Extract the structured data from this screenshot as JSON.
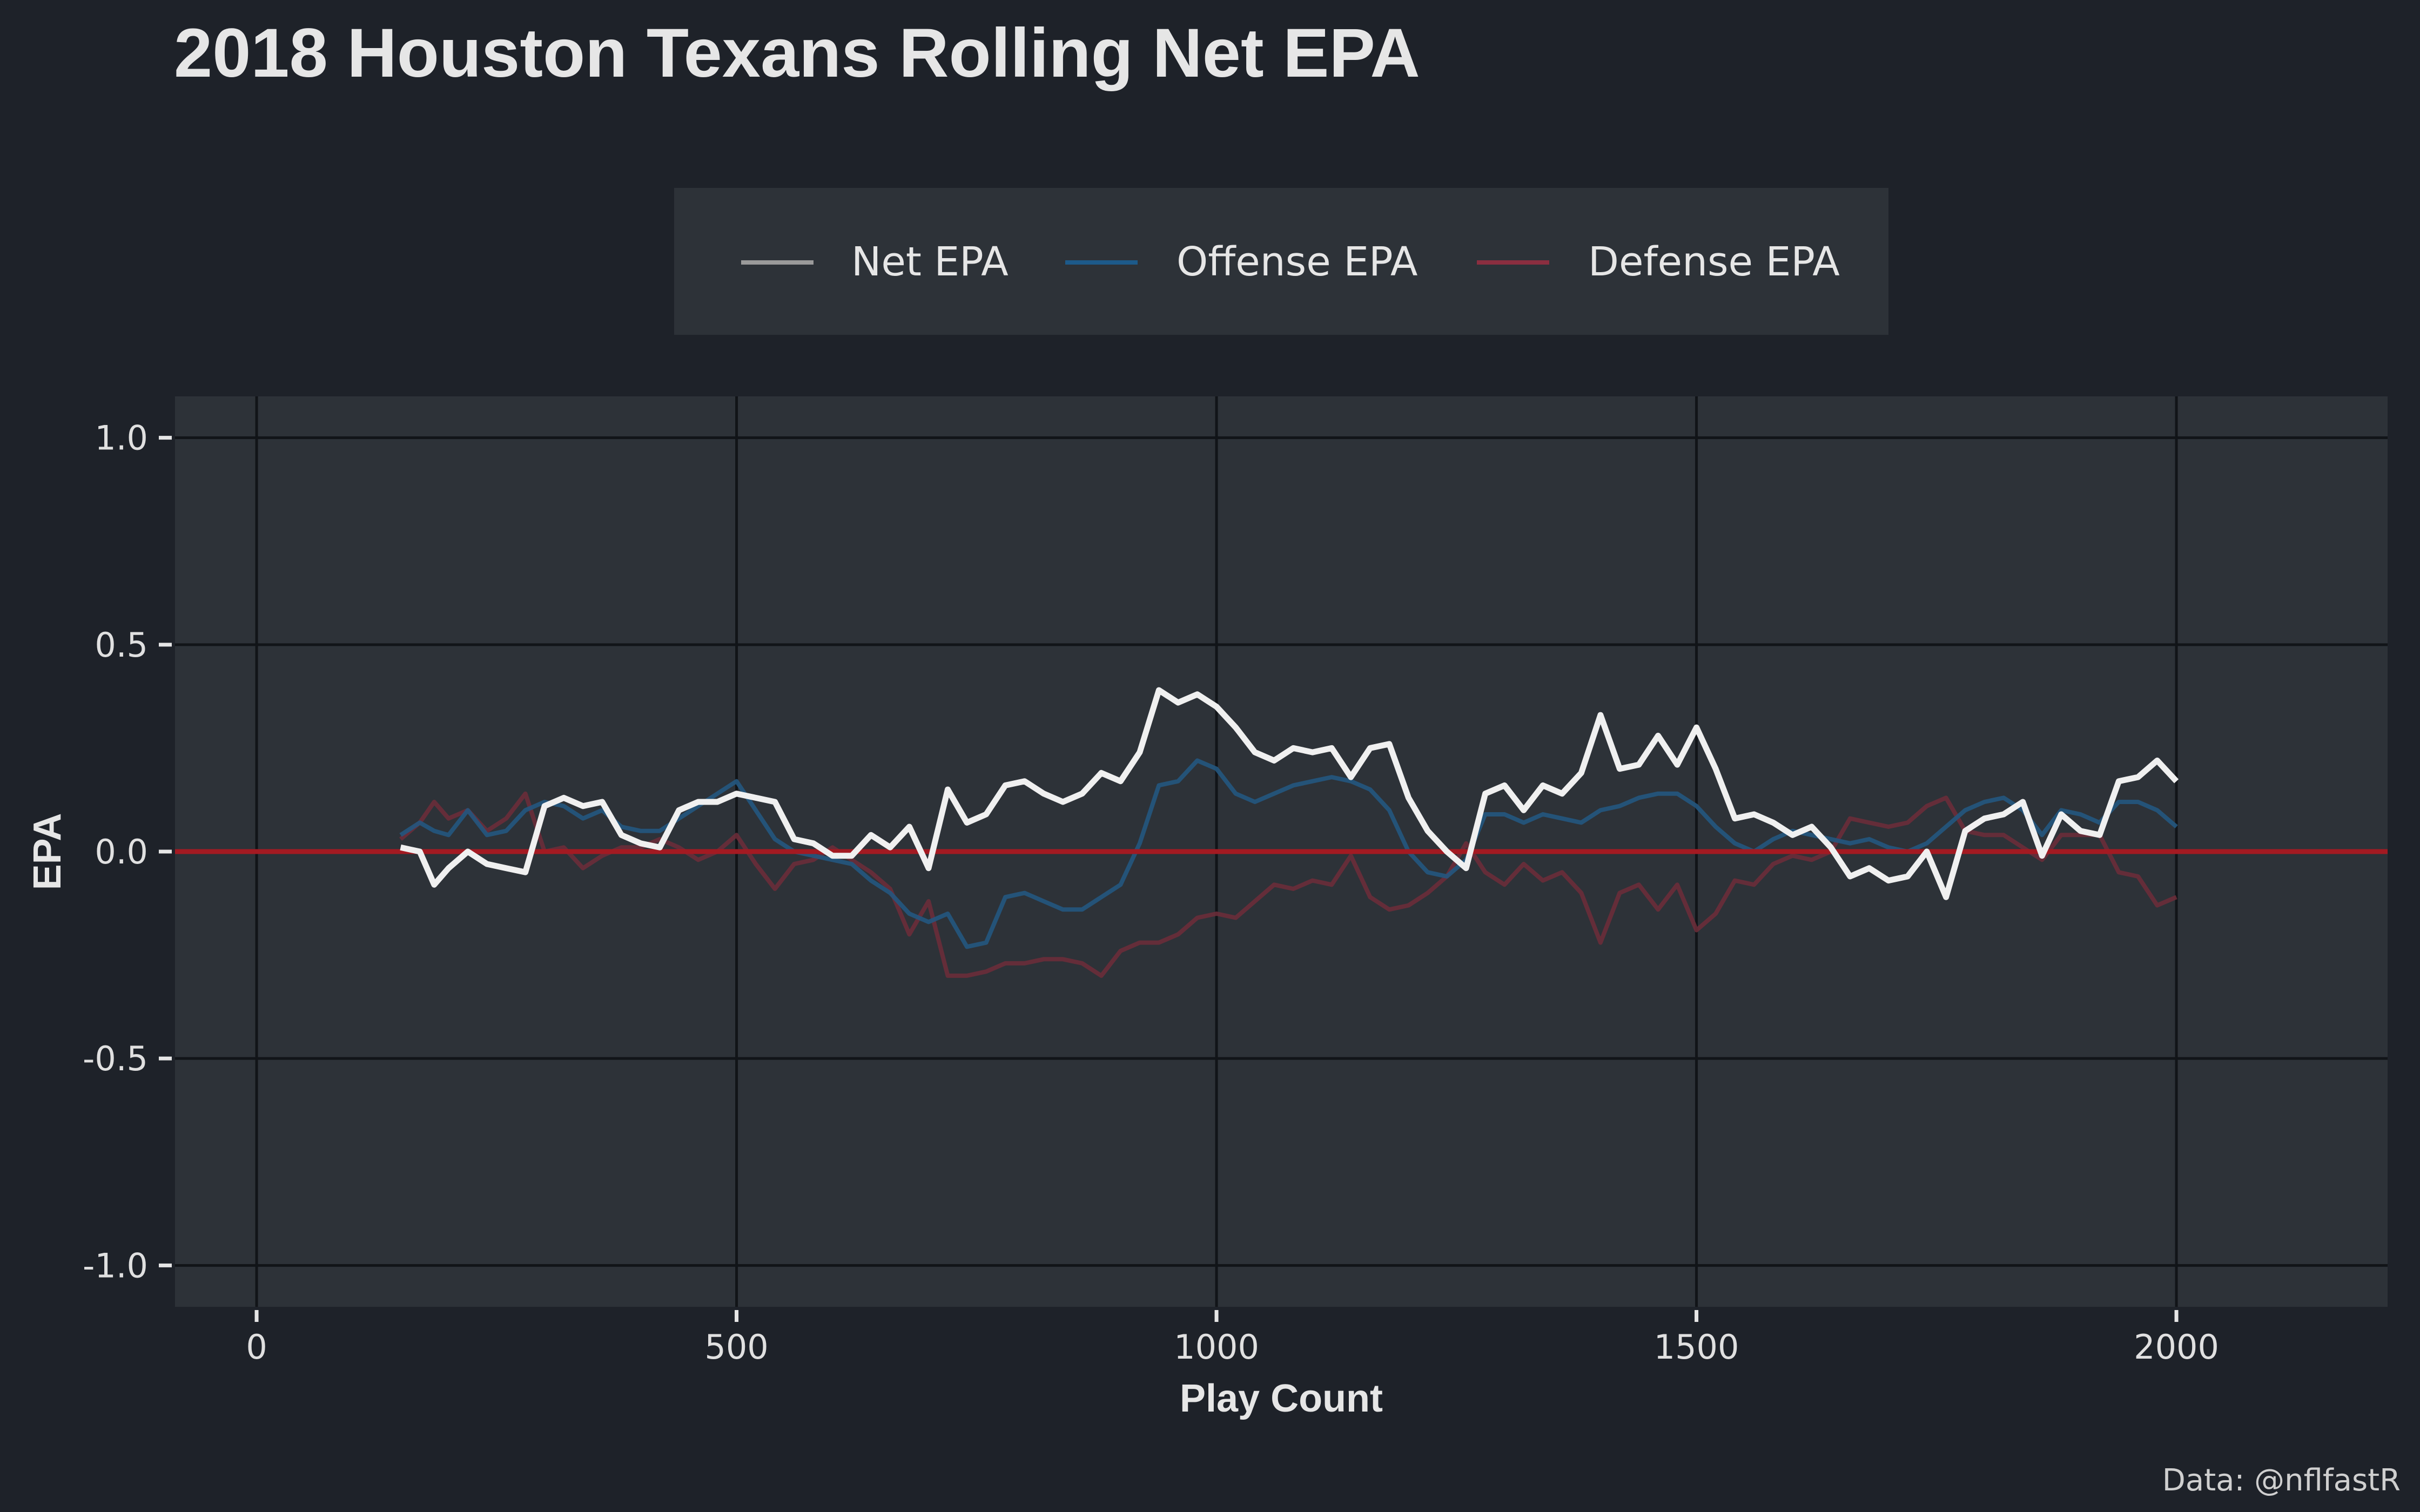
{
  "chart_data": {
    "type": "line",
    "title": "2018 Houston Texans Rolling Net EPA",
    "xlabel": "Play Count",
    "ylabel": "EPA",
    "caption": "Data: @nflfastR",
    "xlim": [
      -85,
      2220
    ],
    "ylim": [
      -1.1,
      1.1
    ],
    "xticks": [
      0,
      500,
      1000,
      1500,
      2000
    ],
    "yticks": [
      1.0,
      0.5,
      0.0,
      -0.5,
      -1.0
    ],
    "ytick_labels": [
      "1.0",
      "0.5",
      "0.0",
      "-0.5",
      "-1.0"
    ],
    "grid": true,
    "legend_position": "top",
    "zero_line": 0,
    "colors": {
      "background": "#1e2229",
      "panel": "#2d3238",
      "grid": "#111418",
      "zero_line": "#a31a22"
    },
    "series": [
      {
        "name": "Net EPA",
        "legend_color": "#9a9a9a",
        "color": "#f0f0f0",
        "opacity": 1,
        "x": [
          150,
          170,
          185,
          200,
          220,
          240,
          260,
          280,
          300,
          320,
          340,
          360,
          380,
          400,
          420,
          440,
          460,
          480,
          500,
          520,
          540,
          560,
          580,
          600,
          620,
          640,
          660,
          680,
          700,
          720,
          740,
          760,
          780,
          800,
          820,
          840,
          860,
          880,
          900,
          920,
          940,
          960,
          980,
          1000,
          1020,
          1040,
          1060,
          1080,
          1100,
          1120,
          1140,
          1160,
          1180,
          1200,
          1220,
          1240,
          1260,
          1280,
          1300,
          1320,
          1340,
          1360,
          1380,
          1400,
          1420,
          1440,
          1460,
          1480,
          1500,
          1520,
          1540,
          1560,
          1580,
          1600,
          1620,
          1640,
          1660,
          1680,
          1700,
          1720,
          1740,
          1760,
          1780,
          1800,
          1820,
          1840,
          1860,
          1880,
          1900,
          1920,
          1940,
          1960,
          1980,
          2000
        ],
        "values": [
          0.01,
          0.0,
          -0.08,
          -0.04,
          0.0,
          -0.03,
          -0.04,
          -0.05,
          0.11,
          0.13,
          0.11,
          0.12,
          0.04,
          0.02,
          0.01,
          0.1,
          0.12,
          0.12,
          0.14,
          0.13,
          0.12,
          0.03,
          0.02,
          -0.01,
          -0.01,
          0.04,
          0.01,
          0.06,
          -0.04,
          0.15,
          0.07,
          0.09,
          0.16,
          0.17,
          0.14,
          0.12,
          0.14,
          0.19,
          0.17,
          0.24,
          0.39,
          0.36,
          0.38,
          0.35,
          0.3,
          0.24,
          0.22,
          0.25,
          0.24,
          0.25,
          0.18,
          0.25,
          0.26,
          0.13,
          0.05,
          0.0,
          -0.04,
          0.14,
          0.16,
          0.1,
          0.16,
          0.14,
          0.19,
          0.33,
          0.2,
          0.21,
          0.28,
          0.21,
          0.3,
          0.2,
          0.08,
          0.09,
          0.07,
          0.04,
          0.06,
          0.01,
          -0.06,
          -0.04,
          -0.07,
          -0.06,
          0.0,
          -0.11,
          0.05,
          0.08,
          0.09,
          0.12,
          -0.01,
          0.09,
          0.05,
          0.04,
          0.17,
          0.18,
          0.22,
          0.17
        ]
      },
      {
        "name": "Offense EPA",
        "legend_color": "#1d5a8a",
        "color": "#24567f",
        "opacity": 0.9,
        "x": [
          150,
          170,
          185,
          200,
          220,
          240,
          260,
          280,
          300,
          320,
          340,
          360,
          380,
          400,
          420,
          440,
          460,
          480,
          500,
          520,
          540,
          560,
          580,
          600,
          620,
          640,
          660,
          680,
          700,
          720,
          740,
          760,
          780,
          800,
          820,
          840,
          860,
          880,
          900,
          920,
          940,
          960,
          980,
          1000,
          1020,
          1040,
          1060,
          1080,
          1100,
          1120,
          1140,
          1160,
          1180,
          1200,
          1220,
          1240,
          1260,
          1280,
          1300,
          1320,
          1340,
          1360,
          1380,
          1400,
          1420,
          1440,
          1460,
          1480,
          1500,
          1520,
          1540,
          1560,
          1580,
          1600,
          1620,
          1640,
          1660,
          1680,
          1700,
          1720,
          1740,
          1760,
          1780,
          1800,
          1820,
          1840,
          1860,
          1880,
          1900,
          1920,
          1940,
          1960,
          1980,
          2000
        ],
        "values": [
          0.04,
          0.07,
          0.05,
          0.04,
          0.1,
          0.04,
          0.05,
          0.1,
          0.12,
          0.11,
          0.08,
          0.1,
          0.06,
          0.05,
          0.05,
          0.08,
          0.11,
          0.14,
          0.17,
          0.1,
          0.03,
          0.0,
          -0.01,
          -0.02,
          -0.03,
          -0.07,
          -0.1,
          -0.15,
          -0.17,
          -0.15,
          -0.23,
          -0.22,
          -0.11,
          -0.1,
          -0.12,
          -0.14,
          -0.14,
          -0.11,
          -0.08,
          0.02,
          0.16,
          0.17,
          0.22,
          0.2,
          0.14,
          0.12,
          0.14,
          0.16,
          0.17,
          0.18,
          0.17,
          0.15,
          0.1,
          0.0,
          -0.05,
          -0.06,
          -0.02,
          0.09,
          0.09,
          0.07,
          0.09,
          0.08,
          0.07,
          0.1,
          0.11,
          0.13,
          0.14,
          0.14,
          0.11,
          0.06,
          0.02,
          0.0,
          0.03,
          0.05,
          0.04,
          0.03,
          0.02,
          0.03,
          0.01,
          0.0,
          0.02,
          0.06,
          0.1,
          0.12,
          0.13,
          0.1,
          0.04,
          0.1,
          0.09,
          0.07,
          0.12,
          0.12,
          0.1,
          0.06
        ]
      },
      {
        "name": "Defense EPA",
        "legend_color": "#8b2e40",
        "color": "#6e2d3a",
        "opacity": 0.85,
        "x": [
          150,
          170,
          185,
          200,
          220,
          240,
          260,
          280,
          300,
          320,
          340,
          360,
          380,
          400,
          420,
          440,
          460,
          480,
          500,
          520,
          540,
          560,
          580,
          600,
          620,
          640,
          660,
          680,
          700,
          720,
          740,
          760,
          780,
          800,
          820,
          840,
          860,
          880,
          900,
          920,
          940,
          960,
          980,
          1000,
          1020,
          1040,
          1060,
          1080,
          1100,
          1120,
          1140,
          1160,
          1180,
          1200,
          1220,
          1240,
          1260,
          1280,
          1300,
          1320,
          1340,
          1360,
          1380,
          1400,
          1420,
          1440,
          1460,
          1480,
          1500,
          1520,
          1540,
          1560,
          1580,
          1600,
          1620,
          1640,
          1660,
          1680,
          1700,
          1720,
          1740,
          1760,
          1780,
          1800,
          1820,
          1840,
          1860,
          1880,
          1900,
          1920,
          1940,
          1960,
          1980,
          2000
        ],
        "values": [
          0.03,
          0.07,
          0.12,
          0.08,
          0.1,
          0.05,
          0.08,
          0.14,
          0.0,
          0.01,
          -0.04,
          -0.01,
          0.01,
          0.01,
          0.03,
          0.01,
          -0.02,
          0.0,
          0.04,
          -0.03,
          -0.09,
          -0.03,
          -0.02,
          0.01,
          -0.02,
          -0.05,
          -0.09,
          -0.2,
          -0.12,
          -0.3,
          -0.3,
          -0.29,
          -0.27,
          -0.27,
          -0.26,
          -0.26,
          -0.27,
          -0.3,
          -0.24,
          -0.22,
          -0.22,
          -0.2,
          -0.16,
          -0.15,
          -0.16,
          -0.12,
          -0.08,
          -0.09,
          -0.07,
          -0.08,
          -0.01,
          -0.11,
          -0.14,
          -0.13,
          -0.1,
          -0.06,
          0.02,
          -0.05,
          -0.08,
          -0.03,
          -0.07,
          -0.05,
          -0.1,
          -0.22,
          -0.1,
          -0.08,
          -0.14,
          -0.08,
          -0.19,
          -0.15,
          -0.07,
          -0.08,
          -0.03,
          -0.01,
          -0.02,
          0.0,
          0.08,
          0.07,
          0.06,
          0.07,
          0.11,
          0.13,
          0.05,
          0.04,
          0.04,
          0.01,
          -0.02,
          0.04,
          0.04,
          0.04,
          -0.05,
          -0.06,
          -0.13,
          -0.11
        ]
      }
    ]
  }
}
